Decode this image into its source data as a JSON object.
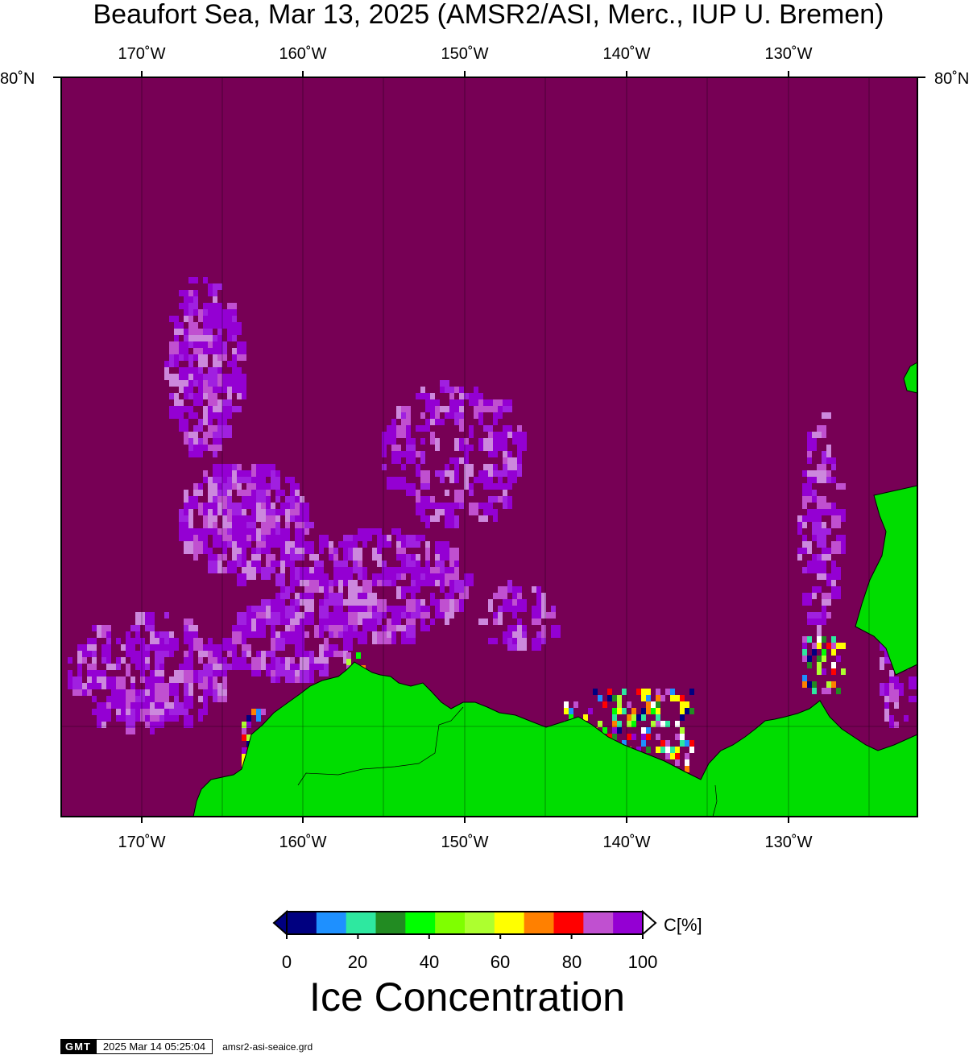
{
  "title": "Beaufort Sea, Mar 13, 2025 (AMSR2/ASI, Merc., IUP U. Bremen)",
  "axes": {
    "lon_labels": [
      "170˚W",
      "160˚W",
      "150˚W",
      "140˚W",
      "130˚W"
    ],
    "lat_label": "80˚N"
  },
  "colorbar": {
    "title": "Ice Concentration",
    "unit": "C[%]",
    "ticks": [
      "0",
      "20",
      "40",
      "60",
      "80",
      "100"
    ],
    "colors": [
      "#000080",
      "#1e90ff",
      "#2ee8a0",
      "#228b22",
      "#00ff00",
      "#7fff00",
      "#adff2f",
      "#ffff00",
      "#ff8000",
      "#ff0000",
      "#c050d0",
      "#9400d3"
    ]
  },
  "map_colors": {
    "ocean_full_ice": "#770055",
    "land": "#00dd00",
    "grid": "#000000"
  },
  "footer": {
    "logo": "GMT",
    "timestamp": "2025 Mar 14 05:25:04",
    "grid_file": "amsr2-asi-seaice.grd"
  }
}
